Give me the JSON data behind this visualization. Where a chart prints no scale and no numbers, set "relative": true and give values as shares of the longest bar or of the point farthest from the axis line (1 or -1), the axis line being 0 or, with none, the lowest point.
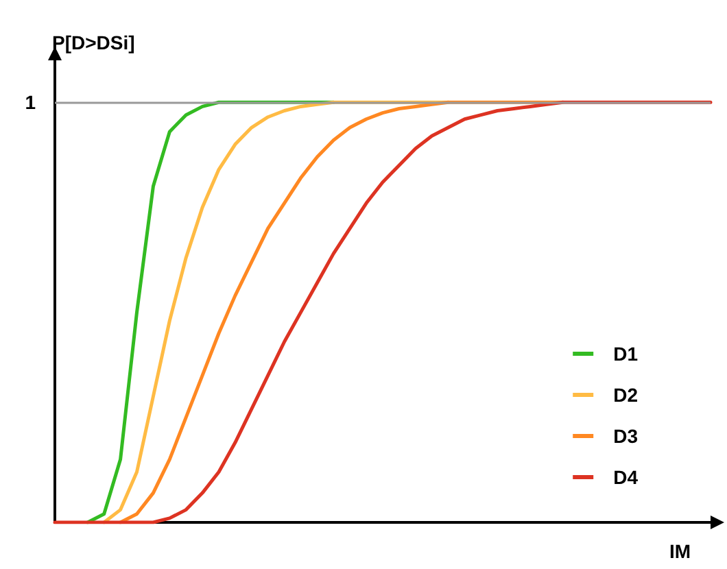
{
  "chart_data": {
    "type": "line",
    "relative": true,
    "ylabel": "P[D>DSi]",
    "xlabel": "IM",
    "categories": [
      null,
      null,
      null,
      null,
      null,
      null,
      null,
      null,
      null,
      null,
      null,
      null,
      null,
      null,
      null,
      null,
      null,
      null,
      null,
      null,
      null,
      null,
      null,
      null,
      null,
      null,
      null,
      null,
      null,
      null,
      null,
      null,
      null,
      null,
      null,
      null,
      null,
      null,
      null,
      null,
      null
    ],
    "series": [
      {
        "name": "D1",
        "color": "#33bb22",
        "values": [
          null,
          null,
          0,
          0.02,
          0.15,
          0.5,
          0.8,
          0.93,
          0.97,
          0.99,
          1,
          1,
          1,
          1,
          1,
          1,
          1,
          1,
          null,
          null,
          null,
          null,
          null,
          null,
          null,
          null,
          null,
          null,
          null,
          null,
          null,
          null,
          null,
          null,
          null,
          null,
          null,
          null,
          null,
          null,
          null
        ]
      },
      {
        "name": "D2",
        "color": "#ffbb44",
        "values": [
          null,
          null,
          null,
          0,
          0.03,
          0.12,
          0.3,
          0.48,
          0.63,
          0.75,
          0.84,
          0.9,
          0.94,
          0.965,
          0.98,
          0.99,
          0.995,
          1,
          1,
          1,
          1,
          1,
          1,
          1,
          1,
          null,
          null,
          null,
          null,
          null,
          null,
          null,
          null,
          null,
          null,
          null,
          null,
          null,
          null,
          null,
          null
        ]
      },
      {
        "name": "D3",
        "color": "#ff8822",
        "values": [
          null,
          null,
          null,
          null,
          0,
          0.02,
          0.07,
          0.15,
          0.25,
          0.35,
          0.45,
          0.54,
          0.62,
          0.7,
          0.76,
          0.82,
          0.87,
          0.91,
          0.94,
          0.96,
          0.975,
          0.985,
          0.99,
          0.995,
          1,
          1,
          1,
          1,
          1,
          1,
          1,
          1,
          null,
          null,
          null,
          null,
          null,
          null,
          null,
          null,
          null
        ]
      },
      {
        "name": "D4",
        "color": "#dd3322",
        "values": [
          0,
          0,
          0,
          0,
          0,
          0,
          0,
          0.01,
          0.03,
          0.07,
          0.12,
          0.19,
          0.27,
          0.35,
          0.43,
          0.5,
          0.57,
          0.64,
          0.7,
          0.76,
          0.81,
          0.85,
          0.89,
          0.92,
          0.94,
          0.96,
          0.97,
          0.98,
          0.985,
          0.99,
          0.995,
          1,
          1,
          1,
          1,
          1,
          1,
          1,
          1,
          1,
          1
        ]
      }
    ],
    "ref_lines": [
      {
        "axis": "y",
        "value": 1,
        "label": "1",
        "color": "#999999"
      }
    ],
    "legend": "bottom right",
    "grid": false,
    "marker": "none",
    "line_style": "solid"
  }
}
